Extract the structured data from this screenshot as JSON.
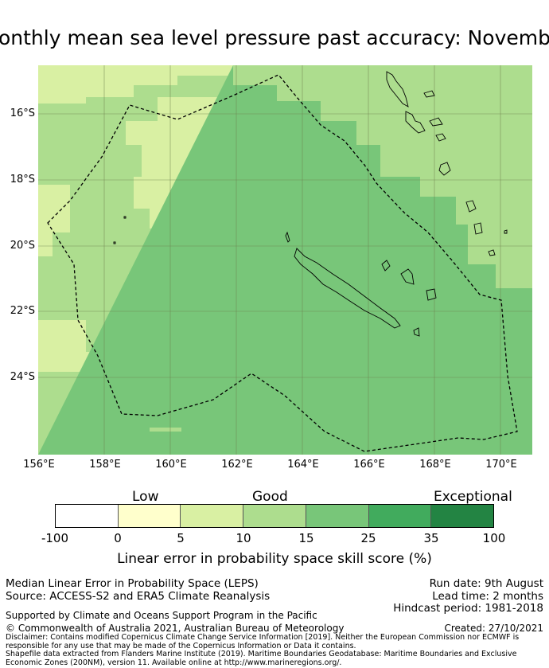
{
  "title": "onthly mean sea level pressure past accuracy: Novemb",
  "map": {
    "lat_labels": [
      "16°S",
      "18°S",
      "20°S",
      "22°S",
      "24°S"
    ],
    "lon_labels": [
      "156°E",
      "158°E",
      "160°E",
      "162°E",
      "164°E",
      "166°E",
      "168°E",
      "170°E"
    ]
  },
  "colorbar": {
    "categories": [
      "Low",
      "Good",
      "Exceptional"
    ],
    "ticks": [
      "-100",
      "0",
      "5",
      "10",
      "15",
      "25",
      "35",
      "100"
    ],
    "colors": [
      "#ffffff",
      "#ffffcc",
      "#d9f0a3",
      "#addd8e",
      "#78c679",
      "#41ab5d",
      "#238443"
    ],
    "title": "Linear error in probability space skill score (%)"
  },
  "footer": {
    "left_line1": "Median Linear Error in Probability Space (LEPS)",
    "left_line2": "Source: ACCESS-S2 and ERA5 Climate Reanalysis",
    "support": "Supported by Climate and Oceans Support Program in the Pacific",
    "copyright": "© Commonwealth of Australia 2021, Australian Bureau of Meteorology",
    "run_date": "Run date: 9th August",
    "lead_time": "Lead time: 2 months",
    "hindcast": "Hindcast period: 1981-2018",
    "created": "Created: 27/10/2021",
    "disclaimer": "Disclaimer: Contains modified Copernicus Climate Change Service Information [2019]. Neither the European Commission nor ECMWF is responsible for any use that may be made of the Copernicus Information or Data it contains.",
    "shapefile": "Shapefile data extracted from Flanders Marine Institute (2019). Maritime Boundaries Geodatabase: Maritime Boundaries and Exclusive Economic Zones (200NM), version 11. Available online at http://www.marineregions.org/."
  }
}
